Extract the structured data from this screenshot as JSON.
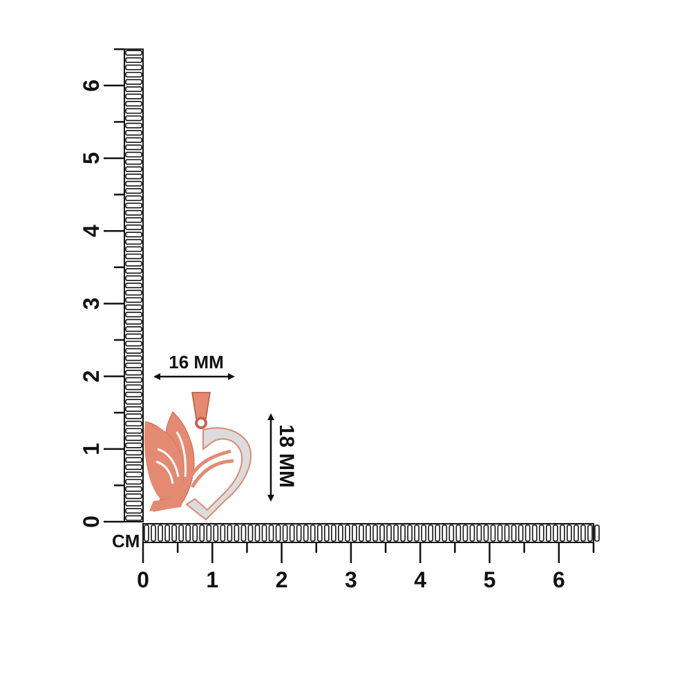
{
  "unit_label": "CM",
  "horizontal_ruler": {
    "ticks": [
      "0",
      "1",
      "2",
      "3",
      "4",
      "5",
      "6"
    ],
    "range_cm": [
      0,
      6.5
    ]
  },
  "vertical_ruler": {
    "ticks": [
      "0",
      "1",
      "2",
      "3",
      "4",
      "5",
      "6"
    ],
    "range_cm": [
      0,
      6.5
    ]
  },
  "width_dimension": "16 MM",
  "height_dimension": "18 MM",
  "colors": {
    "metal": "#e48a72",
    "metal_shadow": "#c8644d",
    "stones": "#dcdcdc",
    "ink": "#111111"
  }
}
